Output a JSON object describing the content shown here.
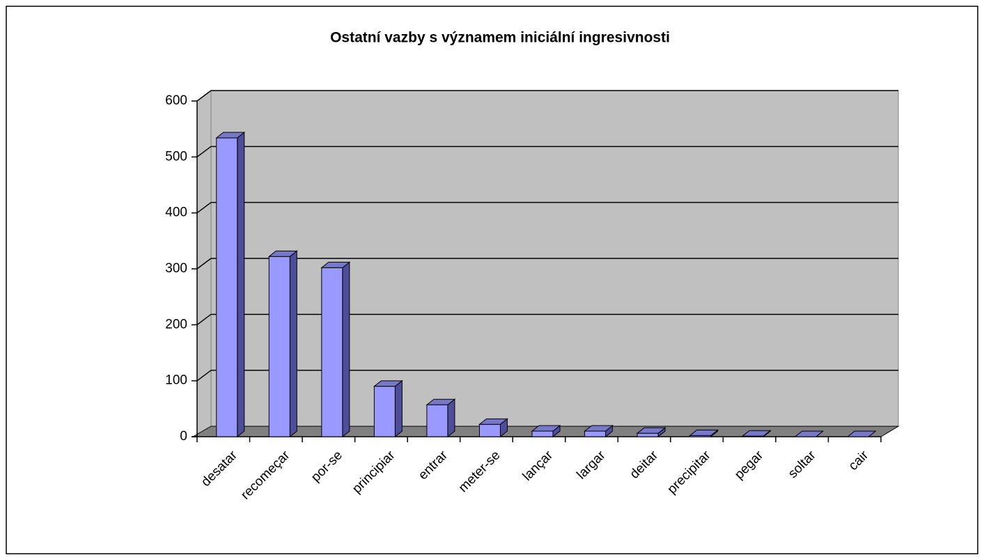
{
  "chart_data": {
    "type": "bar",
    "title": "Ostatní vazby s významem iniciální ingresivnosti",
    "categories": [
      "desatar",
      "recomeçar",
      "por-se",
      "principiar",
      "entrar",
      "meter-se",
      "lançar",
      "largar",
      "deitar",
      "precipitar",
      "pegar",
      "soltar",
      "cair"
    ],
    "values": [
      534,
      322,
      302,
      90,
      57,
      22,
      10,
      10,
      6,
      2,
      1,
      0,
      0
    ],
    "color": "#9999ff",
    "ylim": [
      0,
      600
    ],
    "yticks": [
      0,
      100,
      200,
      300,
      400,
      500,
      600
    ],
    "grid": true
  }
}
